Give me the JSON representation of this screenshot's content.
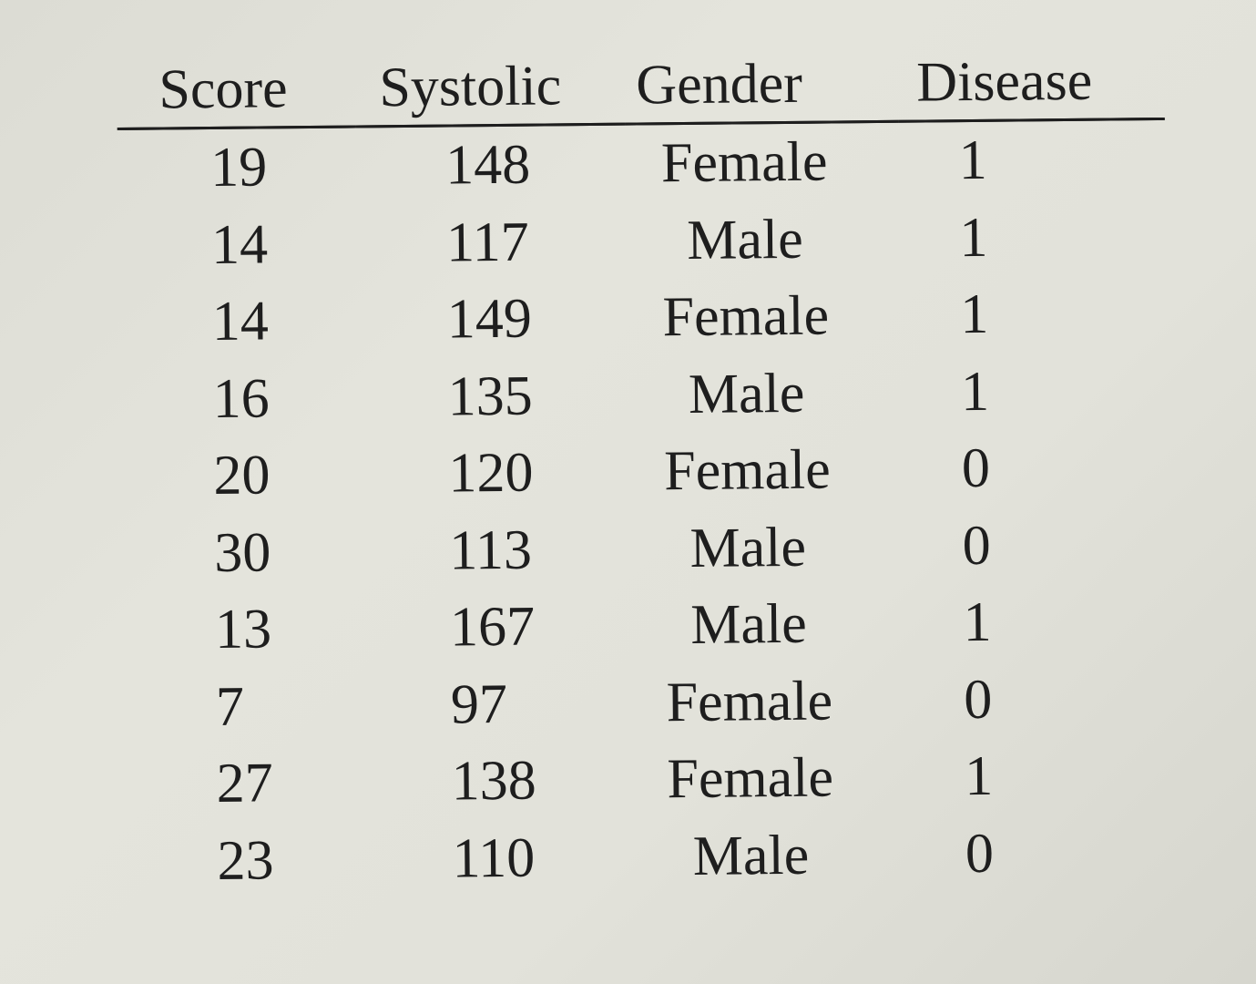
{
  "table": {
    "headers": [
      "Score",
      "Systolic",
      "Gender",
      "Disease"
    ],
    "rows": [
      [
        "19",
        "148",
        "Female",
        "1"
      ],
      [
        "14",
        "117",
        "Male",
        "1"
      ],
      [
        "14",
        "149",
        "Female",
        "1"
      ],
      [
        "16",
        "135",
        "Male",
        "1"
      ],
      [
        "20",
        "120",
        "Female",
        "0"
      ],
      [
        "30",
        "113",
        "Male",
        "0"
      ],
      [
        "13",
        "167",
        "Male",
        "1"
      ],
      [
        "7",
        "97",
        "Female",
        "0"
      ],
      [
        "27",
        "138",
        "Female",
        "1"
      ],
      [
        "23",
        "110",
        "Male",
        "0"
      ]
    ]
  }
}
